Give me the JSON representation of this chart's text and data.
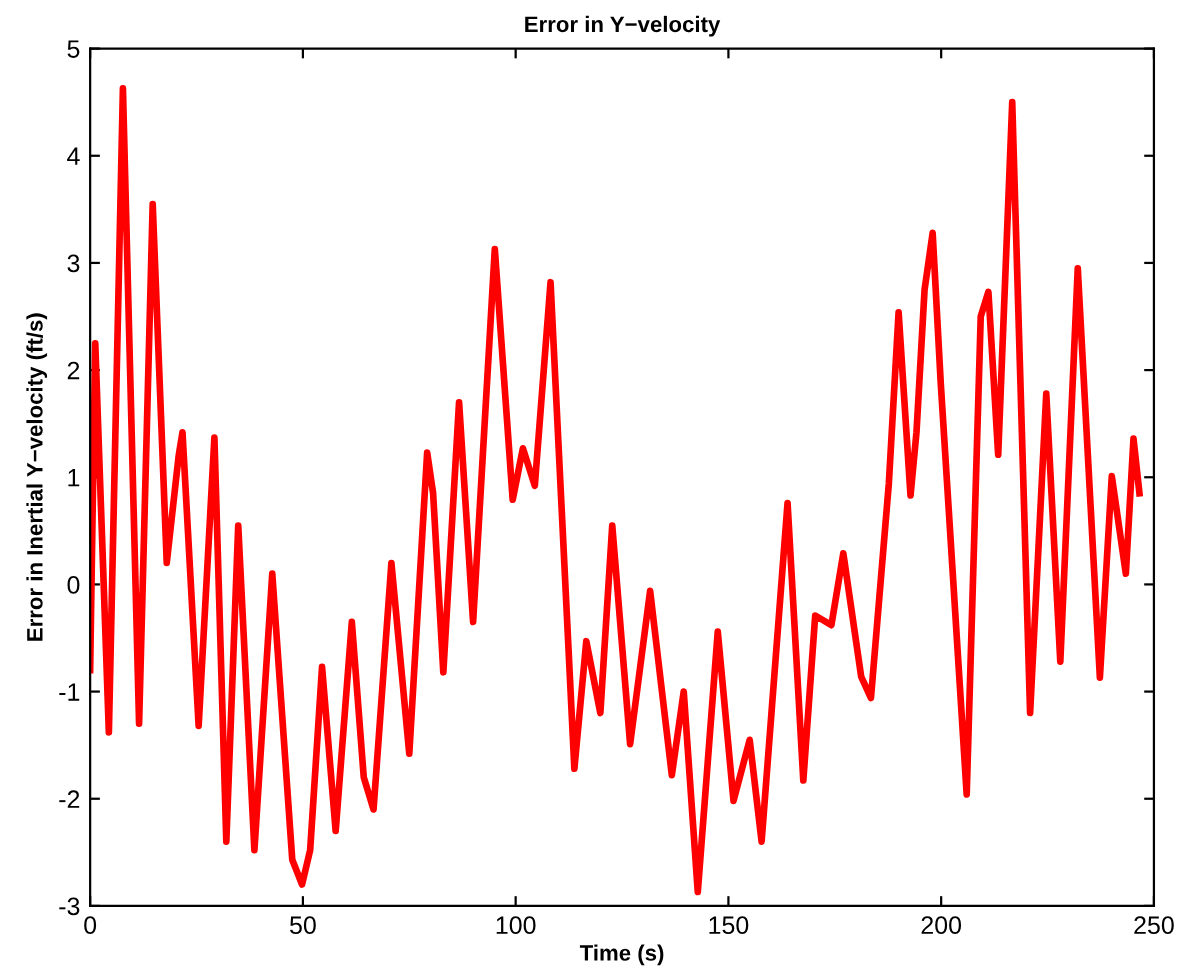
{
  "chart_data": {
    "type": "line",
    "title": "Error in Y−velocity",
    "xlabel": "Time (s)",
    "ylabel": "Error in Inertial Y−velocity (ft/s)",
    "xlim": [
      0,
      250
    ],
    "xticks": [
      0,
      50,
      100,
      150,
      200,
      250
    ],
    "ylim": [
      -3,
      5
    ],
    "yticks": [
      -3,
      -2,
      -1,
      0,
      1,
      2,
      3,
      4,
      5
    ],
    "grid": false,
    "series": [
      {
        "color": "#ff0000",
        "x": [
          0,
          1.2,
          4.4,
          7.7,
          11.5,
          14.7,
          18,
          20.8,
          21.7,
          25.5,
          29.2,
          32,
          34.8,
          38.6,
          42.8,
          47.5,
          49.8,
          51.7,
          54.5,
          57.7,
          61.5,
          64.3,
          66.6,
          70.8,
          75,
          79.2,
          80.6,
          83,
          86.7,
          90,
          95.1,
          99.3,
          101.7,
          104.5,
          108.2,
          113.8,
          116.6,
          119.9,
          122.7,
          126.9,
          131.6,
          136.7,
          139.5,
          142.8,
          147.5,
          151.2,
          155,
          157.8,
          163.9,
          167.6,
          170.4,
          174.2,
          177,
          181.2,
          183.5,
          187.7,
          190,
          192.8,
          194.2,
          196.1,
          198,
          199.9,
          206,
          209.3,
          211.1,
          213.4,
          216.7,
          220.9,
          224.7,
          228,
          232.1,
          237.3,
          240.1,
          243.4,
          245.2,
          246.6
        ],
        "values": [
          -0.8,
          2.25,
          -1.38,
          4.63,
          -1.3,
          3.55,
          0.2,
          1.2,
          1.42,
          -1.32,
          1.37,
          -2.4,
          0.55,
          -2.48,
          0.1,
          -2.57,
          -2.8,
          -2.48,
          -0.77,
          -2.3,
          -0.35,
          -1.8,
          -2.1,
          0.2,
          -1.58,
          1.23,
          0.85,
          -0.82,
          1.7,
          -0.35,
          3.13,
          0.79,
          1.27,
          0.92,
          2.82,
          -1.72,
          -0.53,
          -1.2,
          0.55,
          -1.49,
          -0.06,
          -1.78,
          -1.0,
          -2.87,
          -0.44,
          -2.02,
          -1.45,
          -2.4,
          0.76,
          -1.83,
          -0.29,
          -0.38,
          0.29,
          -0.86,
          -1.06,
          0.94,
          2.54,
          0.83,
          1.42,
          2.75,
          3.28,
          1.88,
          -1.96,
          2.5,
          2.73,
          1.21,
          4.5,
          -1.2,
          1.78,
          -0.72,
          2.95,
          -0.87,
          1.01,
          0.1,
          1.36,
          0.85
        ]
      }
    ]
  }
}
